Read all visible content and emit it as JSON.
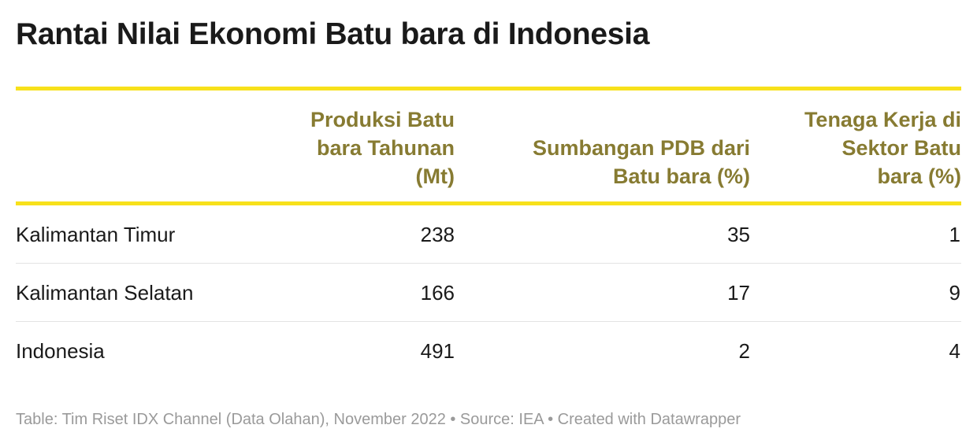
{
  "header": {
    "title": "Rantai Nilai Ekonomi Batu bara di Indonesia"
  },
  "table": {
    "columns": [
      "",
      "Produksi Batu bara Tahunan (Mt)",
      "Sumbangan PDB dari Batu bara (%)",
      "Tenaga Kerja di Sektor Batu bara (%)"
    ],
    "rows": [
      [
        "Kalimantan Timur",
        238,
        35,
        1
      ],
      [
        "Kalimantan Selatan",
        166,
        17,
        9
      ],
      [
        "Indonesia",
        491,
        2,
        4
      ]
    ]
  },
  "footer": {
    "text": "Table: Tim Riset IDX Channel (Data Olahan), November 2022 • Source: IEA • Created with Datawrapper"
  }
}
